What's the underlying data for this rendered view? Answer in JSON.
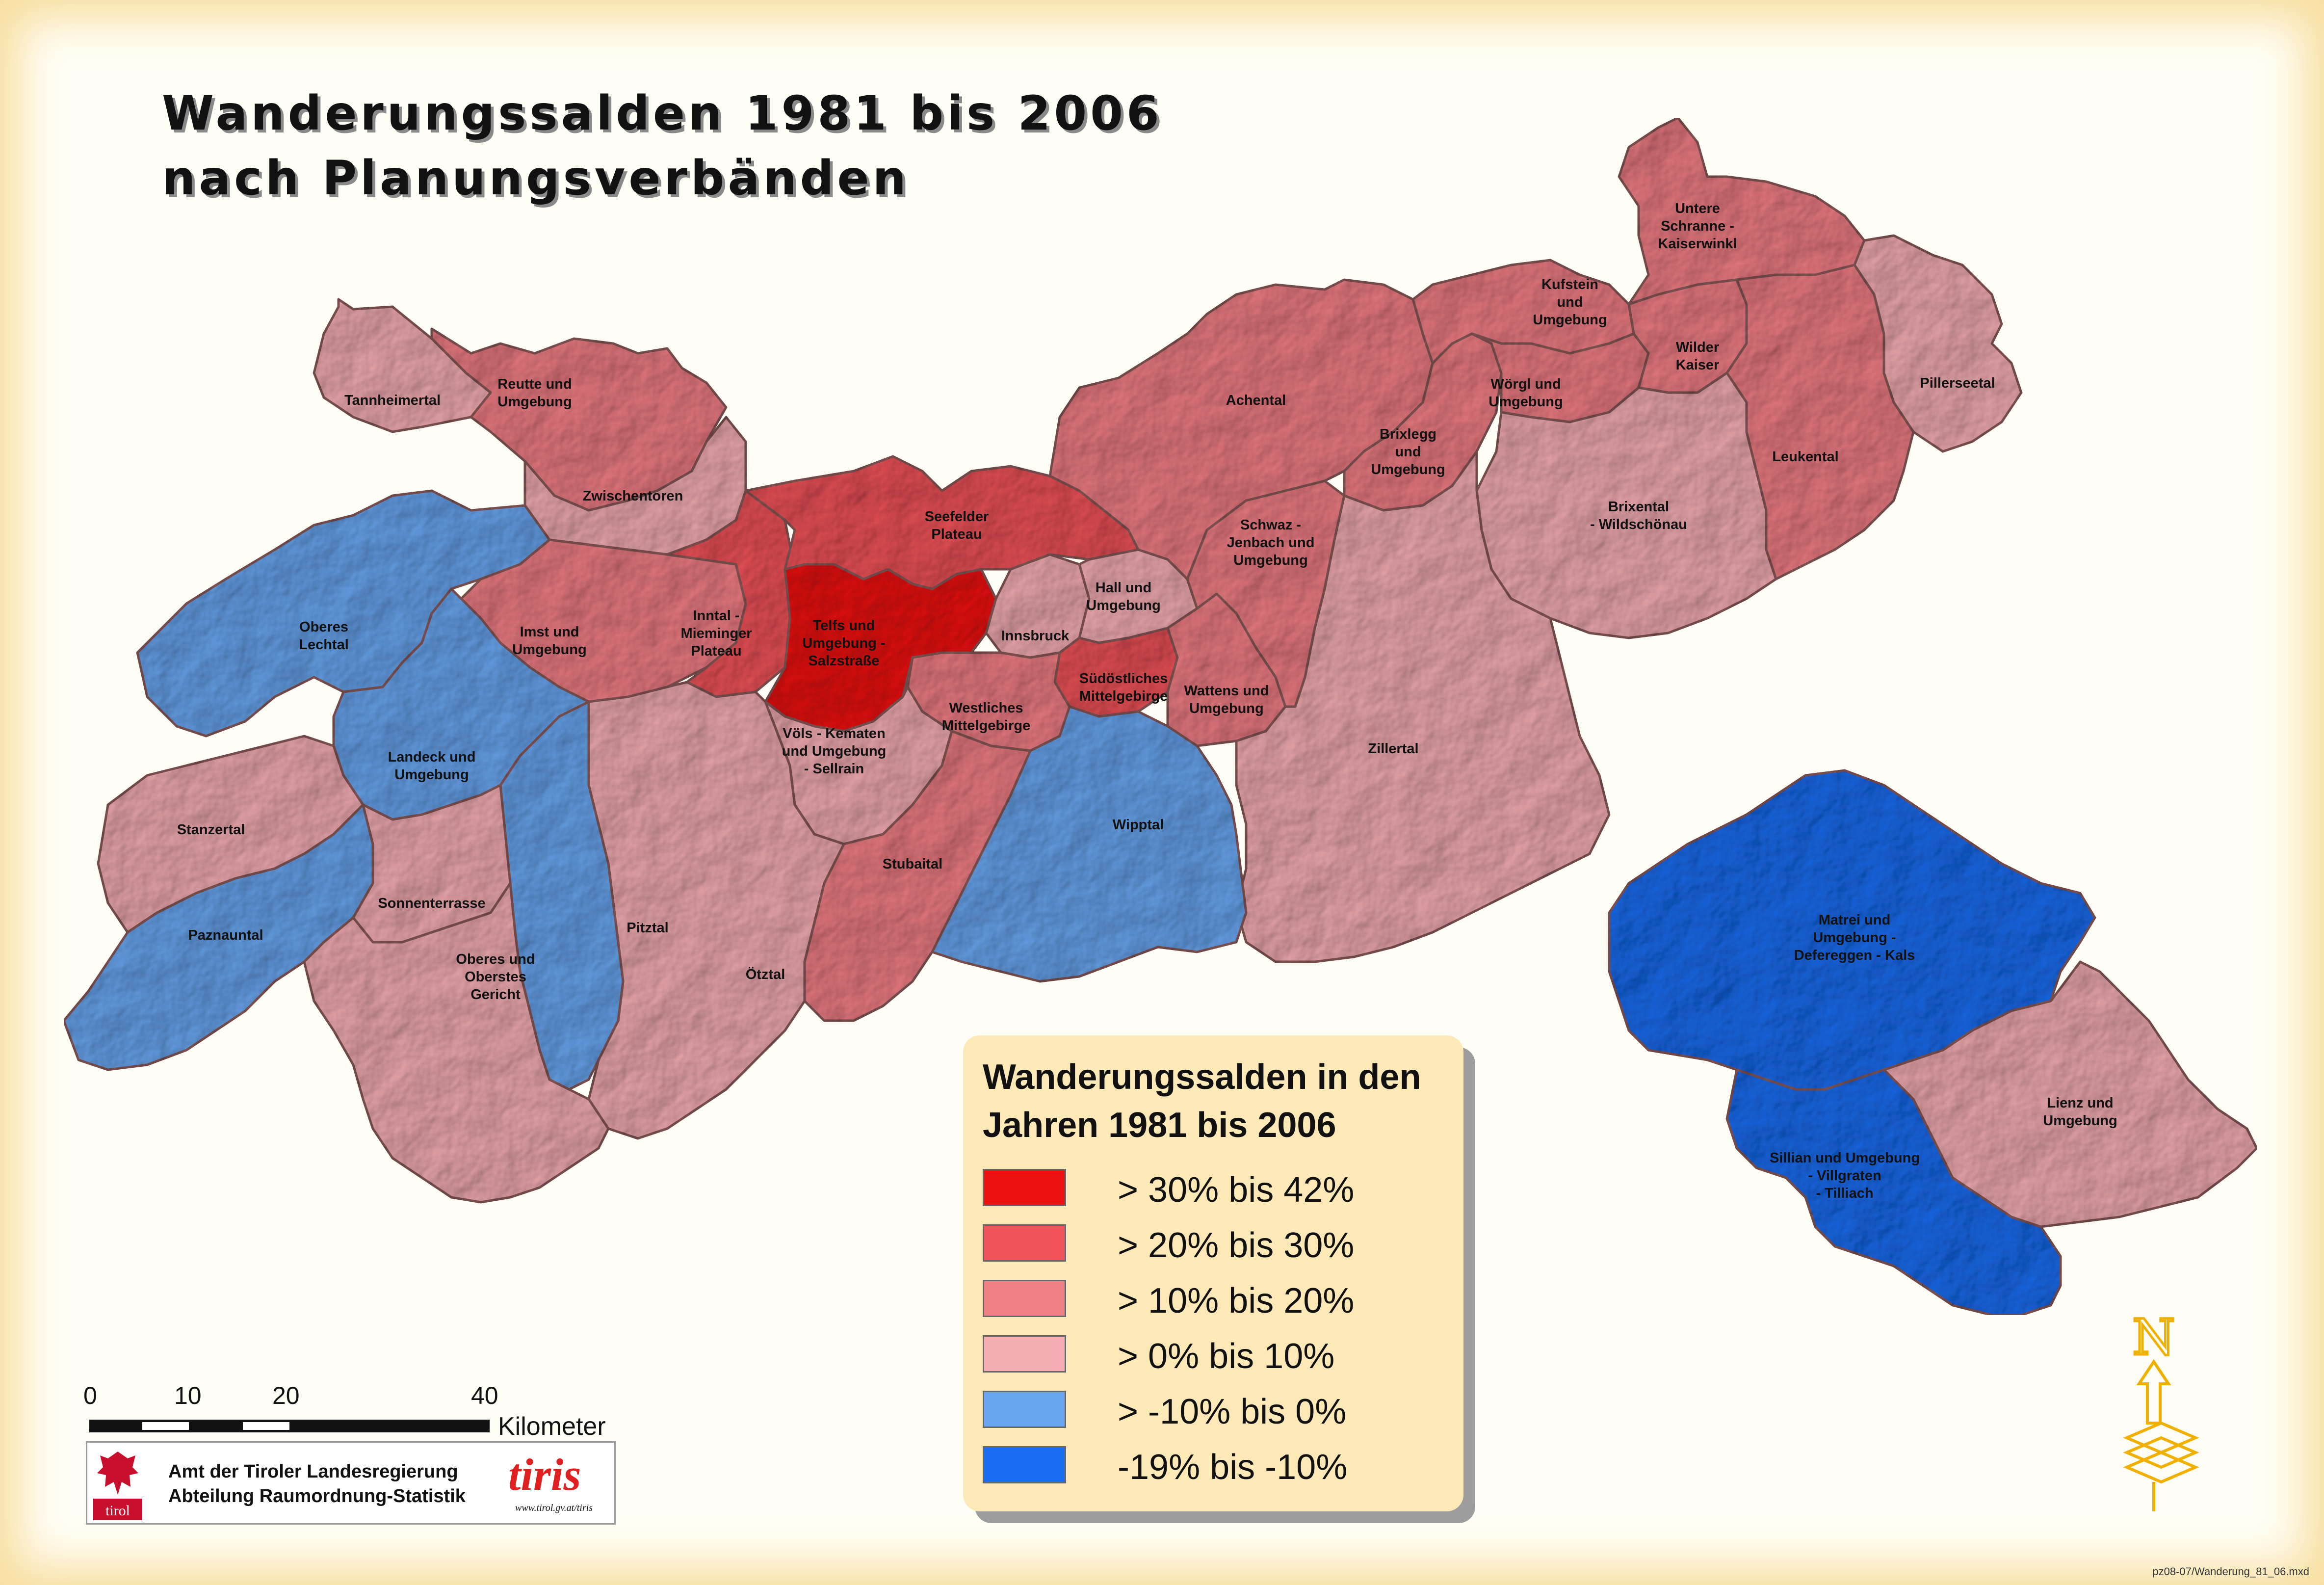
{
  "title_lines": [
    "Wanderungssalden 1981 bis 2006",
    "nach Planungsverbänden"
  ],
  "legend": {
    "title_lines": [
      "Wanderungssalden in den",
      "Jahren 1981 bis 2006"
    ],
    "classes": [
      {
        "label": "> 30% bis 42%",
        "color": "#ee1111"
      },
      {
        "label": "> 20% bis 30%",
        "color": "#f0545a"
      },
      {
        "label": "> 10% bis 20%",
        "color": "#f07f86"
      },
      {
        "label": "> 0% bis 10%",
        "color": "#f4aeb4"
      },
      {
        "label": "> -10% bis 0%",
        "color": "#6aa6ef"
      },
      {
        "label": "-19% bis -10%",
        "color": "#1a6df0"
      }
    ]
  },
  "regions": [
    {
      "id": "tannheimertal",
      "lines": [
        "Tannheimertal"
      ],
      "class": 3
    },
    {
      "id": "reutte",
      "lines": [
        "Reutte und",
        "Umgebung"
      ],
      "class": 2
    },
    {
      "id": "zwischentoren",
      "lines": [
        "Zwischentoren"
      ],
      "class": 3
    },
    {
      "id": "oberes-lechtal",
      "lines": [
        "Oberes",
        "Lechtal"
      ],
      "class": 4
    },
    {
      "id": "imst",
      "lines": [
        "Imst und",
        "Umgebung"
      ],
      "class": 2
    },
    {
      "id": "inntal-mieminger",
      "lines": [
        "Inntal -",
        "Mieminger",
        "Plateau"
      ],
      "class": 1
    },
    {
      "id": "telfs",
      "lines": [
        "Telfs und",
        "Umgebung -",
        "Salzstraße"
      ],
      "class": 0
    },
    {
      "id": "seefelder",
      "lines": [
        "Seefelder",
        "Plateau"
      ],
      "class": 1
    },
    {
      "id": "innsbruck",
      "lines": [
        "Innsbruck"
      ],
      "class": 3
    },
    {
      "id": "hall",
      "lines": [
        "Hall und",
        "Umgebung"
      ],
      "class": 3
    },
    {
      "id": "suedoestliches",
      "lines": [
        "Südöstliches",
        "Mittelgebirge"
      ],
      "class": 1
    },
    {
      "id": "westliches",
      "lines": [
        "Westliches",
        "Mittelgebirge"
      ],
      "class": 2
    },
    {
      "id": "voels",
      "lines": [
        "Völs - Kematen",
        "und Umgebung",
        "- Sellrain"
      ],
      "class": 3
    },
    {
      "id": "wattens",
      "lines": [
        "Wattens und",
        "Umgebung"
      ],
      "class": 2
    },
    {
      "id": "schwaz",
      "lines": [
        "Schwaz -",
        "Jenbach und",
        "Umgebung"
      ],
      "class": 2
    },
    {
      "id": "achental",
      "lines": [
        "Achental"
      ],
      "class": 2
    },
    {
      "id": "brixlegg",
      "lines": [
        "Brixlegg",
        "und",
        "Umgebung"
      ],
      "class": 2
    },
    {
      "id": "kufstein",
      "lines": [
        "Kufstein",
        "und",
        "Umgebung"
      ],
      "class": 2
    },
    {
      "id": "woergl",
      "lines": [
        "Wörgl und",
        "Umgebung"
      ],
      "class": 2
    },
    {
      "id": "untere-schranne",
      "lines": [
        "Untere",
        "Schranne -",
        "Kaiserwinkl"
      ],
      "class": 2
    },
    {
      "id": "wilder-kaiser",
      "lines": [
        "Wilder",
        "Kaiser"
      ],
      "class": 2
    },
    {
      "id": "pillerseetal",
      "lines": [
        "Pillerseetal"
      ],
      "class": 3
    },
    {
      "id": "leukental",
      "lines": [
        "Leukental"
      ],
      "class": 2
    },
    {
      "id": "brixental",
      "lines": [
        "Brixental",
        "- Wildschönau"
      ],
      "class": 3
    },
    {
      "id": "zillertal",
      "lines": [
        "Zillertal"
      ],
      "class": 3
    },
    {
      "id": "wipptal",
      "lines": [
        "Wipptal"
      ],
      "class": 4
    },
    {
      "id": "stubaital",
      "lines": [
        "Stubaital"
      ],
      "class": 2
    },
    {
      "id": "oetztal",
      "lines": [
        "Ötztal"
      ],
      "class": 3
    },
    {
      "id": "pitztal",
      "lines": [
        "Pitztal"
      ],
      "class": 4
    },
    {
      "id": "landeck",
      "lines": [
        "Landeck und",
        "Umgebung"
      ],
      "class": 4
    },
    {
      "id": "stanzertal",
      "lines": [
        "Stanzertal"
      ],
      "class": 3
    },
    {
      "id": "paznauntal",
      "lines": [
        "Paznauntal"
      ],
      "class": 4
    },
    {
      "id": "sonnenterrasse",
      "lines": [
        "Sonnenterrasse"
      ],
      "class": 3
    },
    {
      "id": "oberes-oberstes",
      "lines": [
        "Oberes und",
        "Oberstes",
        "Gericht"
      ],
      "class": 3
    },
    {
      "id": "matrei",
      "lines": [
        "Matrei und",
        "Umgebung -",
        "Defereggen - Kals"
      ],
      "class": 5
    },
    {
      "id": "sillian",
      "lines": [
        "Sillian und Umgebung",
        "- Villgraten",
        "- Tilliach"
      ],
      "class": 5
    },
    {
      "id": "lienz",
      "lines": [
        "Lienz und",
        "Umgebung"
      ],
      "class": 3
    }
  ],
  "scale": {
    "ticks": [
      "0",
      "10",
      "20",
      "40"
    ],
    "unit": "Kilometer"
  },
  "credits": {
    "line1": "Amt der Tiroler Landesregierung",
    "line2": "Abteilung Raumordnung-Statistik",
    "tirol_word": "tirol",
    "tiris": "tiris",
    "tiris_url": "www.tirol.gv.at/tiris"
  },
  "north_letter": "N",
  "file_id": "pz08-07/Wanderung_81_06.mxd"
}
